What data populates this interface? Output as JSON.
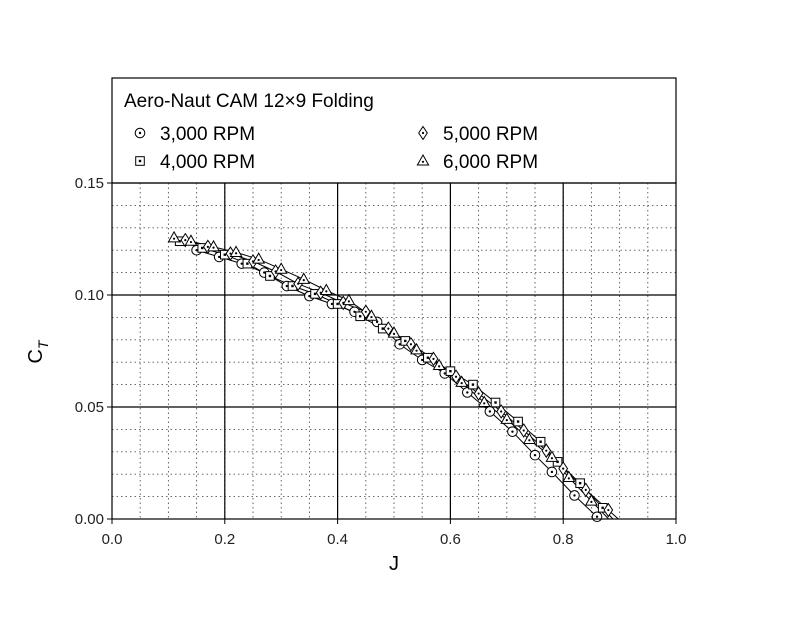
{
  "chart_data": {
    "type": "scatter",
    "title": "",
    "xlabel": "J",
    "ylabel": "C",
    "ylabel_sub": "T",
    "xlim": [
      0.0,
      1.0
    ],
    "ylim": [
      0.0,
      0.15
    ],
    "xticks": [
      "0.0",
      "0.2",
      "0.4",
      "0.6",
      "0.8",
      "1.0"
    ],
    "yticks": [
      "0.00",
      "0.05",
      "0.10",
      "0.15"
    ],
    "grid": true,
    "legend_position": "top",
    "legend_title": "Aero-Naut CAM 12×9 Folding",
    "series": [
      {
        "name": "3,000 RPM",
        "marker": "circle",
        "x": [
          0.15,
          0.19,
          0.23,
          0.27,
          0.31,
          0.35,
          0.39,
          0.43,
          0.47,
          0.51,
          0.55,
          0.59,
          0.63,
          0.67,
          0.71,
          0.75,
          0.78,
          0.82,
          0.86
        ],
        "y": [
          0.12,
          0.117,
          0.114,
          0.11,
          0.104,
          0.0995,
          0.096,
          0.0925,
          0.088,
          0.078,
          0.071,
          0.065,
          0.0565,
          0.048,
          0.039,
          0.0285,
          0.021,
          0.0105,
          0.001
        ]
      },
      {
        "name": "4,000 RPM",
        "marker": "square",
        "x": [
          0.12,
          0.16,
          0.2,
          0.24,
          0.28,
          0.32,
          0.36,
          0.4,
          0.44,
          0.48,
          0.52,
          0.56,
          0.6,
          0.64,
          0.68,
          0.72,
          0.76,
          0.79,
          0.83,
          0.87
        ],
        "y": [
          0.124,
          0.121,
          0.118,
          0.114,
          0.1085,
          0.104,
          0.1005,
          0.096,
          0.0905,
          0.085,
          0.0795,
          0.072,
          0.066,
          0.06,
          0.052,
          0.0435,
          0.0345,
          0.0255,
          0.016,
          0.005
        ]
      },
      {
        "name": "5,000 RPM",
        "marker": "diamond",
        "x": [
          0.13,
          0.17,
          0.21,
          0.25,
          0.29,
          0.33,
          0.37,
          0.41,
          0.45,
          0.49,
          0.53,
          0.57,
          0.61,
          0.65,
          0.69,
          0.73,
          0.77,
          0.8,
          0.84,
          0.88
        ],
        "y": [
          0.1245,
          0.1215,
          0.1185,
          0.115,
          0.1105,
          0.105,
          0.101,
          0.0965,
          0.0925,
          0.085,
          0.078,
          0.0715,
          0.0635,
          0.056,
          0.048,
          0.0395,
          0.0305,
          0.0225,
          0.013,
          0.004
        ]
      },
      {
        "name": "6,000 RPM",
        "marker": "triangle",
        "x": [
          0.11,
          0.14,
          0.18,
          0.22,
          0.26,
          0.3,
          0.34,
          0.38,
          0.42,
          0.46,
          0.5,
          0.54,
          0.58,
          0.62,
          0.66,
          0.7,
          0.74,
          0.78,
          0.81,
          0.85
        ],
        "y": [
          0.1255,
          0.124,
          0.1215,
          0.119,
          0.116,
          0.1115,
          0.107,
          0.102,
          0.0975,
          0.0905,
          0.083,
          0.0755,
          0.0685,
          0.061,
          0.052,
          0.0445,
          0.0355,
          0.0275,
          0.0185,
          0.008
        ]
      }
    ]
  }
}
